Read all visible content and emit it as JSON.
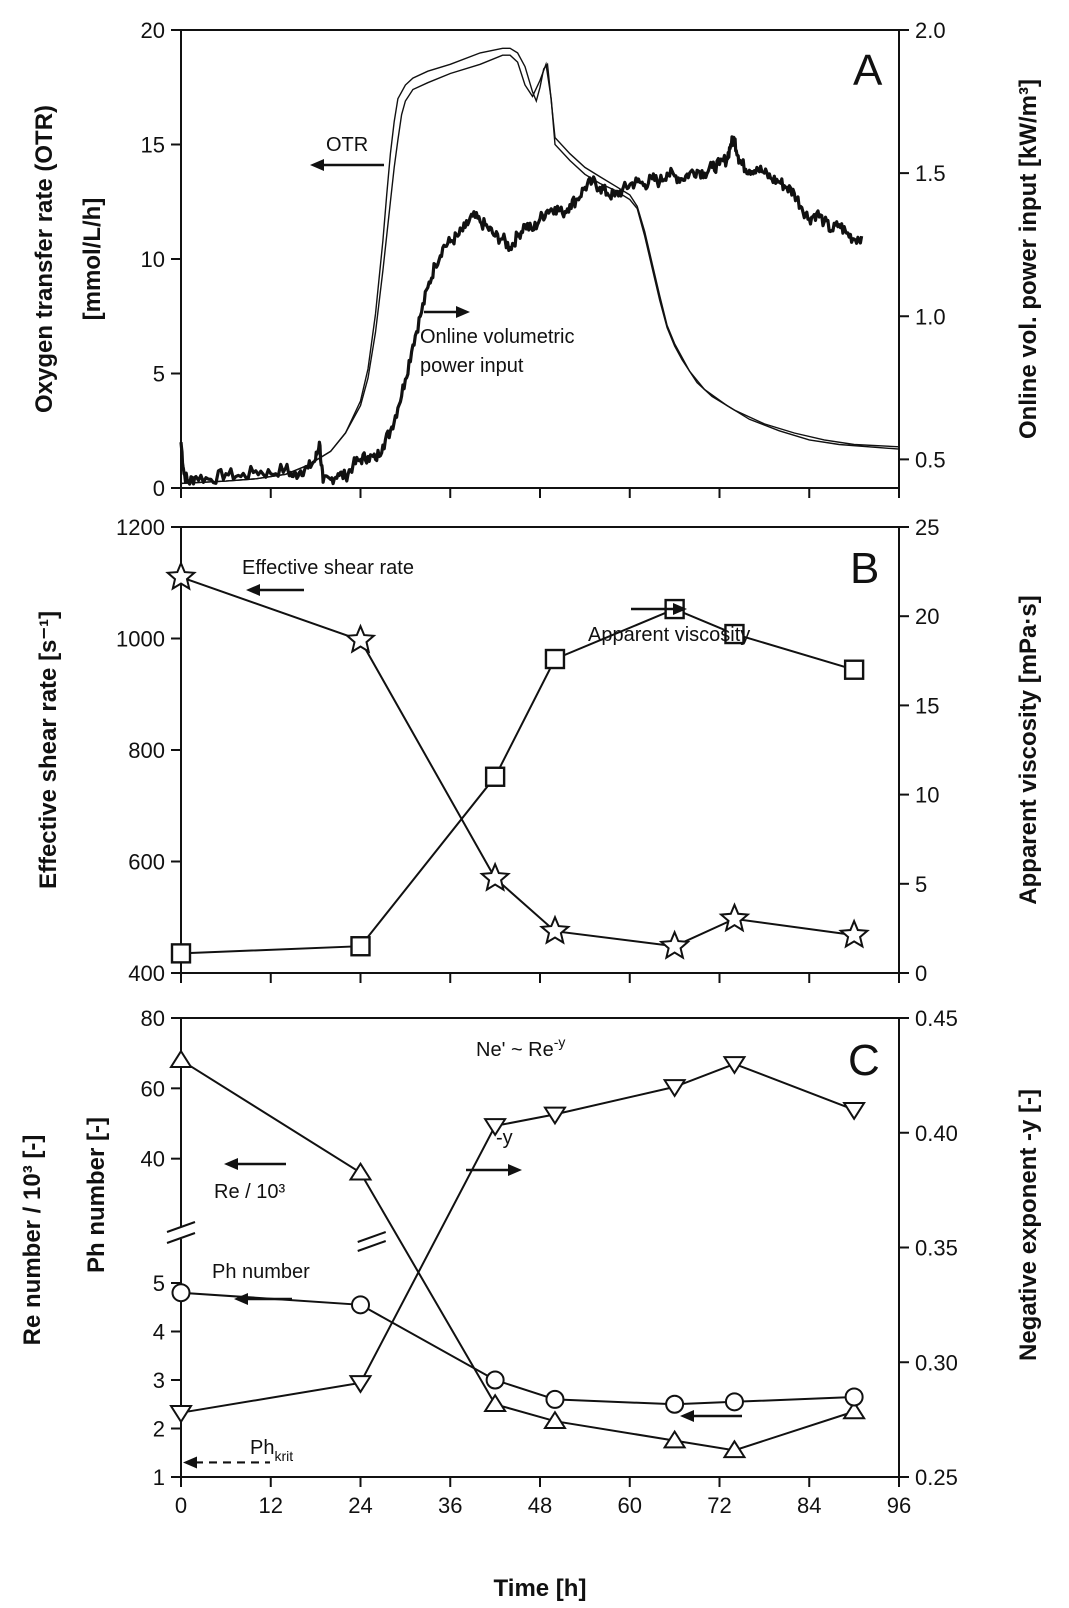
{
  "chart_data": {
    "type": "multi-panel",
    "shared_x": {
      "label": "Time [h]",
      "range": [
        0,
        96
      ],
      "ticks": [
        0,
        12,
        24,
        36,
        48,
        60,
        72,
        84,
        96
      ],
      "tick_labels": [
        "0",
        "12",
        "24",
        "36",
        "48",
        "60",
        "72",
        "84",
        "96"
      ]
    },
    "panels": [
      {
        "id": "A",
        "letter": "A",
        "type": "line",
        "left_axis": {
          "label_line1": "Oxygen transfer rate (OTR)",
          "label_line2": "[mmol/L/h]",
          "range": [
            0,
            20
          ],
          "ticks": [
            0,
            5,
            10,
            15,
            20
          ],
          "tick_labels": [
            "0",
            "5",
            "10",
            "15",
            "20"
          ]
        },
        "right_axis": {
          "label": "Online vol. power input  [kW/m³]",
          "range": [
            0.4,
            2.0
          ],
          "ticks": [
            0.5,
            1.0,
            1.5,
            2.0
          ],
          "tick_labels": [
            "0.5",
            "1.0",
            "1.5",
            "2.0"
          ]
        },
        "series": [
          {
            "name": "OTR replicate 1",
            "axis": "left",
            "style": "thin",
            "x": [
              0,
              6,
              10,
              14,
              17,
              20,
              22,
              24,
              25,
              26,
              27,
              28,
              28.5,
              29,
              29.5,
              30,
              31,
              33,
              36,
              40,
              43,
              44,
              45,
              46,
              47,
              48,
              48.8,
              49.5,
              50,
              52,
              54,
              56,
              58,
              60,
              61,
              62,
              63,
              64,
              65,
              66,
              67,
              69,
              71,
              74,
              78,
              82,
              86,
              90,
              96
            ],
            "values": [
              0.2,
              0.3,
              0.4,
              0.6,
              1.0,
              1.6,
              2.4,
              3.6,
              4.8,
              6.8,
              9.5,
              12.5,
              14.0,
              15.2,
              16.3,
              16.9,
              17.4,
              17.7,
              18.1,
              18.5,
              18.9,
              18.9,
              18.6,
              17.6,
              17.1,
              17.8,
              18.5,
              17.0,
              15.0,
              14.3,
              13.7,
              13.3,
              13.0,
              12.6,
              12.2,
              11.0,
              9.6,
              8.2,
              7.0,
              6.2,
              5.6,
              4.6,
              4.0,
              3.4,
              2.8,
              2.4,
              2.1,
              1.9,
              1.8
            ]
          },
          {
            "name": "OTR replicate 2",
            "axis": "left",
            "style": "thin",
            "x": [
              0,
              6,
              10,
              14,
              17,
              20,
              22,
              24,
              25,
              26,
              27,
              27.5,
              28,
              28.5,
              29,
              30,
              31,
              33,
              36,
              40,
              43,
              44,
              45,
              46,
              47,
              47.5,
              48,
              48.5,
              49,
              50,
              52,
              54,
              56,
              58,
              60,
              61,
              62,
              63,
              64,
              65,
              66,
              68,
              70,
              73,
              76,
              80,
              84,
              88,
              96
            ],
            "values": [
              0.2,
              0.3,
              0.4,
              0.6,
              1.0,
              1.6,
              2.4,
              3.8,
              5.2,
              7.6,
              10.8,
              12.8,
              14.6,
              16.0,
              17.0,
              17.6,
              17.9,
              18.2,
              18.5,
              19.0,
              19.2,
              19.2,
              19.0,
              18.4,
              17.3,
              16.9,
              17.5,
              18.3,
              18.5,
              15.3,
              14.6,
              14.0,
              13.6,
              13.2,
              12.8,
              12.3,
              11.2,
              9.8,
              8.4,
              7.1,
              6.3,
              5.1,
              4.3,
              3.6,
              3.0,
              2.5,
              2.1,
              1.9,
              1.7
            ]
          },
          {
            "name": "Online volumetric power input",
            "axis": "right",
            "style": "thick",
            "x": [
              0,
              0.4,
              1,
              2,
              4,
              6,
              8,
              10,
              12,
              14,
              15,
              16,
              17,
              18,
              18.5,
              19,
              20,
              21,
              22,
              23,
              24,
              25,
              26,
              27,
              28,
              29,
              30,
              31,
              32,
              33,
              34,
              35,
              36,
              37,
              38,
              39,
              40,
              41,
              42,
              43,
              44,
              45,
              46,
              47,
              48,
              49,
              50,
              51,
              52,
              53,
              54,
              55,
              56,
              57,
              58,
              59,
              60,
              61,
              62,
              63,
              64,
              65,
              66,
              67,
              68,
              69,
              70,
              71,
              72,
              73,
              73.5,
              74,
              74.5,
              75,
              76,
              77,
              78,
              79,
              80,
              81,
              82,
              83,
              84,
              85,
              86,
              87,
              88,
              89,
              90,
              91
            ],
            "values": [
              0.56,
              0.45,
              0.42,
              0.44,
              0.43,
              0.45,
              0.44,
              0.46,
              0.45,
              0.47,
              0.44,
              0.46,
              0.47,
              0.5,
              0.56,
              0.42,
              0.43,
              0.45,
              0.44,
              0.48,
              0.5,
              0.51,
              0.5,
              0.55,
              0.6,
              0.68,
              0.78,
              0.9,
              1.0,
              1.1,
              1.18,
              1.24,
              1.26,
              1.28,
              1.31,
              1.35,
              1.33,
              1.31,
              1.28,
              1.27,
              1.24,
              1.28,
              1.32,
              1.3,
              1.34,
              1.37,
              1.38,
              1.36,
              1.39,
              1.41,
              1.45,
              1.47,
              1.45,
              1.43,
              1.42,
              1.44,
              1.46,
              1.47,
              1.46,
              1.48,
              1.47,
              1.5,
              1.49,
              1.48,
              1.5,
              1.51,
              1.5,
              1.52,
              1.53,
              1.55,
              1.6,
              1.62,
              1.56,
              1.53,
              1.51,
              1.52,
              1.5,
              1.48,
              1.47,
              1.45,
              1.43,
              1.38,
              1.34,
              1.36,
              1.33,
              1.3,
              1.32,
              1.29,
              1.27,
              1.28
            ]
          }
        ],
        "annotations": [
          {
            "text": "OTR",
            "arrow": "left"
          },
          {
            "text_line1": "Online volumetric",
            "text_line2": "power input",
            "arrow": "right"
          }
        ]
      },
      {
        "id": "B",
        "letter": "B",
        "type": "line+marker",
        "left_axis": {
          "label": "Effective shear rate  [s⁻¹]",
          "range": [
            400,
            1200
          ],
          "ticks": [
            400,
            600,
            800,
            1000,
            1200
          ],
          "tick_labels": [
            "400",
            "600",
            "800",
            "1000",
            "1200"
          ]
        },
        "right_axis": {
          "label": "Apparent viscosity  [mPa·s]",
          "range": [
            0,
            25
          ],
          "ticks": [
            0,
            5,
            10,
            15,
            20,
            25
          ],
          "tick_labels": [
            "0",
            "5",
            "10",
            "15",
            "20",
            "25"
          ]
        },
        "series": [
          {
            "name": "Effective shear rate",
            "axis": "left",
            "marker": "star",
            "x": [
              0,
              24,
              42,
              50,
              66,
              74,
              90
            ],
            "values": [
              1110,
              997,
              570,
              475,
              448,
              497,
              468
            ]
          },
          {
            "name": "Apparent viscosity",
            "axis": "right",
            "marker": "square",
            "x": [
              0,
              24,
              42,
              50,
              66,
              74,
              90
            ],
            "values": [
              1.1,
              1.5,
              11.0,
              17.6,
              20.4,
              19.0,
              17.0
            ]
          }
        ],
        "annotations": [
          {
            "text": "Effective shear rate",
            "arrow": "left"
          },
          {
            "text": "Apparent viscosity",
            "arrow": "right"
          }
        ]
      },
      {
        "id": "C",
        "letter": "C",
        "type": "line+marker",
        "left_axis": {
          "label_line1": "Re number / 10³  [-]",
          "label_line2": "Ph number  [-]",
          "broken": true,
          "upper_range": [
            20,
            80
          ],
          "upper_ticks": [
            40,
            60,
            80
          ],
          "upper_tick_labels": [
            "40",
            "60",
            "80"
          ],
          "lower_range": [
            1,
            5.5
          ],
          "lower_ticks": [
            1,
            2,
            3,
            4,
            5
          ],
          "lower_tick_labels": [
            "1",
            "2",
            "3",
            "4",
            "5"
          ]
        },
        "right_axis": {
          "label": "Negative exponent -y  [-]",
          "range": [
            0.25,
            0.45
          ],
          "ticks": [
            0.25,
            0.3,
            0.35,
            0.4,
            0.45
          ],
          "tick_labels": [
            "0.25",
            "0.30",
            "0.35",
            "0.40",
            "0.45"
          ]
        },
        "series": [
          {
            "name": "Re / 10³",
            "axis": "left",
            "marker": "triangle-up",
            "x": [
              0,
              24,
              42,
              50,
              66,
              74,
              90
            ],
            "values": [
              68,
              36,
              2.5,
              2.15,
              1.75,
              1.55,
              2.35
            ]
          },
          {
            "name": "Ph number",
            "axis": "left",
            "marker": "circle",
            "x": [
              0,
              24,
              42,
              50,
              66,
              74,
              90
            ],
            "values": [
              4.8,
              4.55,
              3.0,
              2.6,
              2.5,
              2.55,
              2.65
            ]
          },
          {
            "name": "-y",
            "axis": "right",
            "marker": "triangle-down",
            "x": [
              0,
              24,
              42,
              50,
              66,
              74,
              90
            ],
            "values": [
              0.278,
              0.291,
              0.403,
              0.408,
              0.42,
              0.43,
              0.41
            ]
          }
        ],
        "annotations": [
          {
            "text": "Ne' ~ Re",
            "superscript": "-y"
          },
          {
            "text": "-y",
            "arrow": "right"
          },
          {
            "text": "Re / 10³",
            "arrow": "left"
          },
          {
            "text": "Ph number",
            "arrow": "left"
          },
          {
            "text": "Ph",
            "subscript": "krit",
            "value": 1.3,
            "arrow": "dashed-left"
          }
        ]
      }
    ]
  }
}
